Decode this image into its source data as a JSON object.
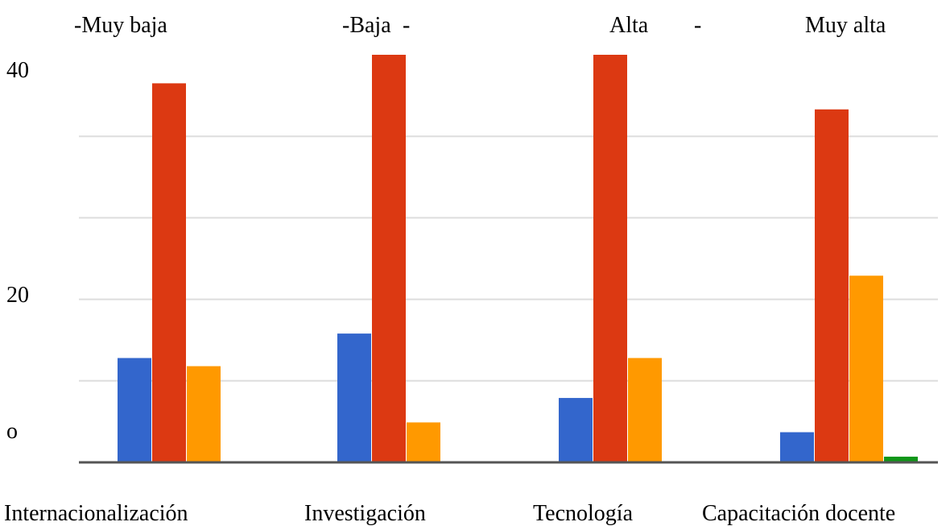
{
  "chart_data": {
    "type": "bar",
    "legend": {
      "placement": "top",
      "labels": [
        "-Muy baja",
        "-Baja",
        "-",
        "Alta",
        "-",
        "Muy alta"
      ]
    },
    "y_ticks": [
      "o",
      "20",
      "40"
    ],
    "categories": [
      "Internacionalización",
      "Investigación",
      "Tecnología",
      "Capacitación docente"
    ],
    "ylim": [
      0,
      50
    ],
    "grid": true,
    "series": [
      {
        "color": "#3366cc",
        "values": [
          12.8,
          15.8,
          7.9,
          3.7
        ]
      },
      {
        "color": "#dc3912",
        "values": [
          46.5,
          50,
          50,
          43.3
        ]
      },
      {
        "color": "#ff9900",
        "values": [
          11.8,
          4.9,
          12.8,
          22.9
        ]
      },
      {
        "color": "#109618",
        "values": [
          0,
          0,
          0,
          0.7
        ]
      }
    ]
  }
}
